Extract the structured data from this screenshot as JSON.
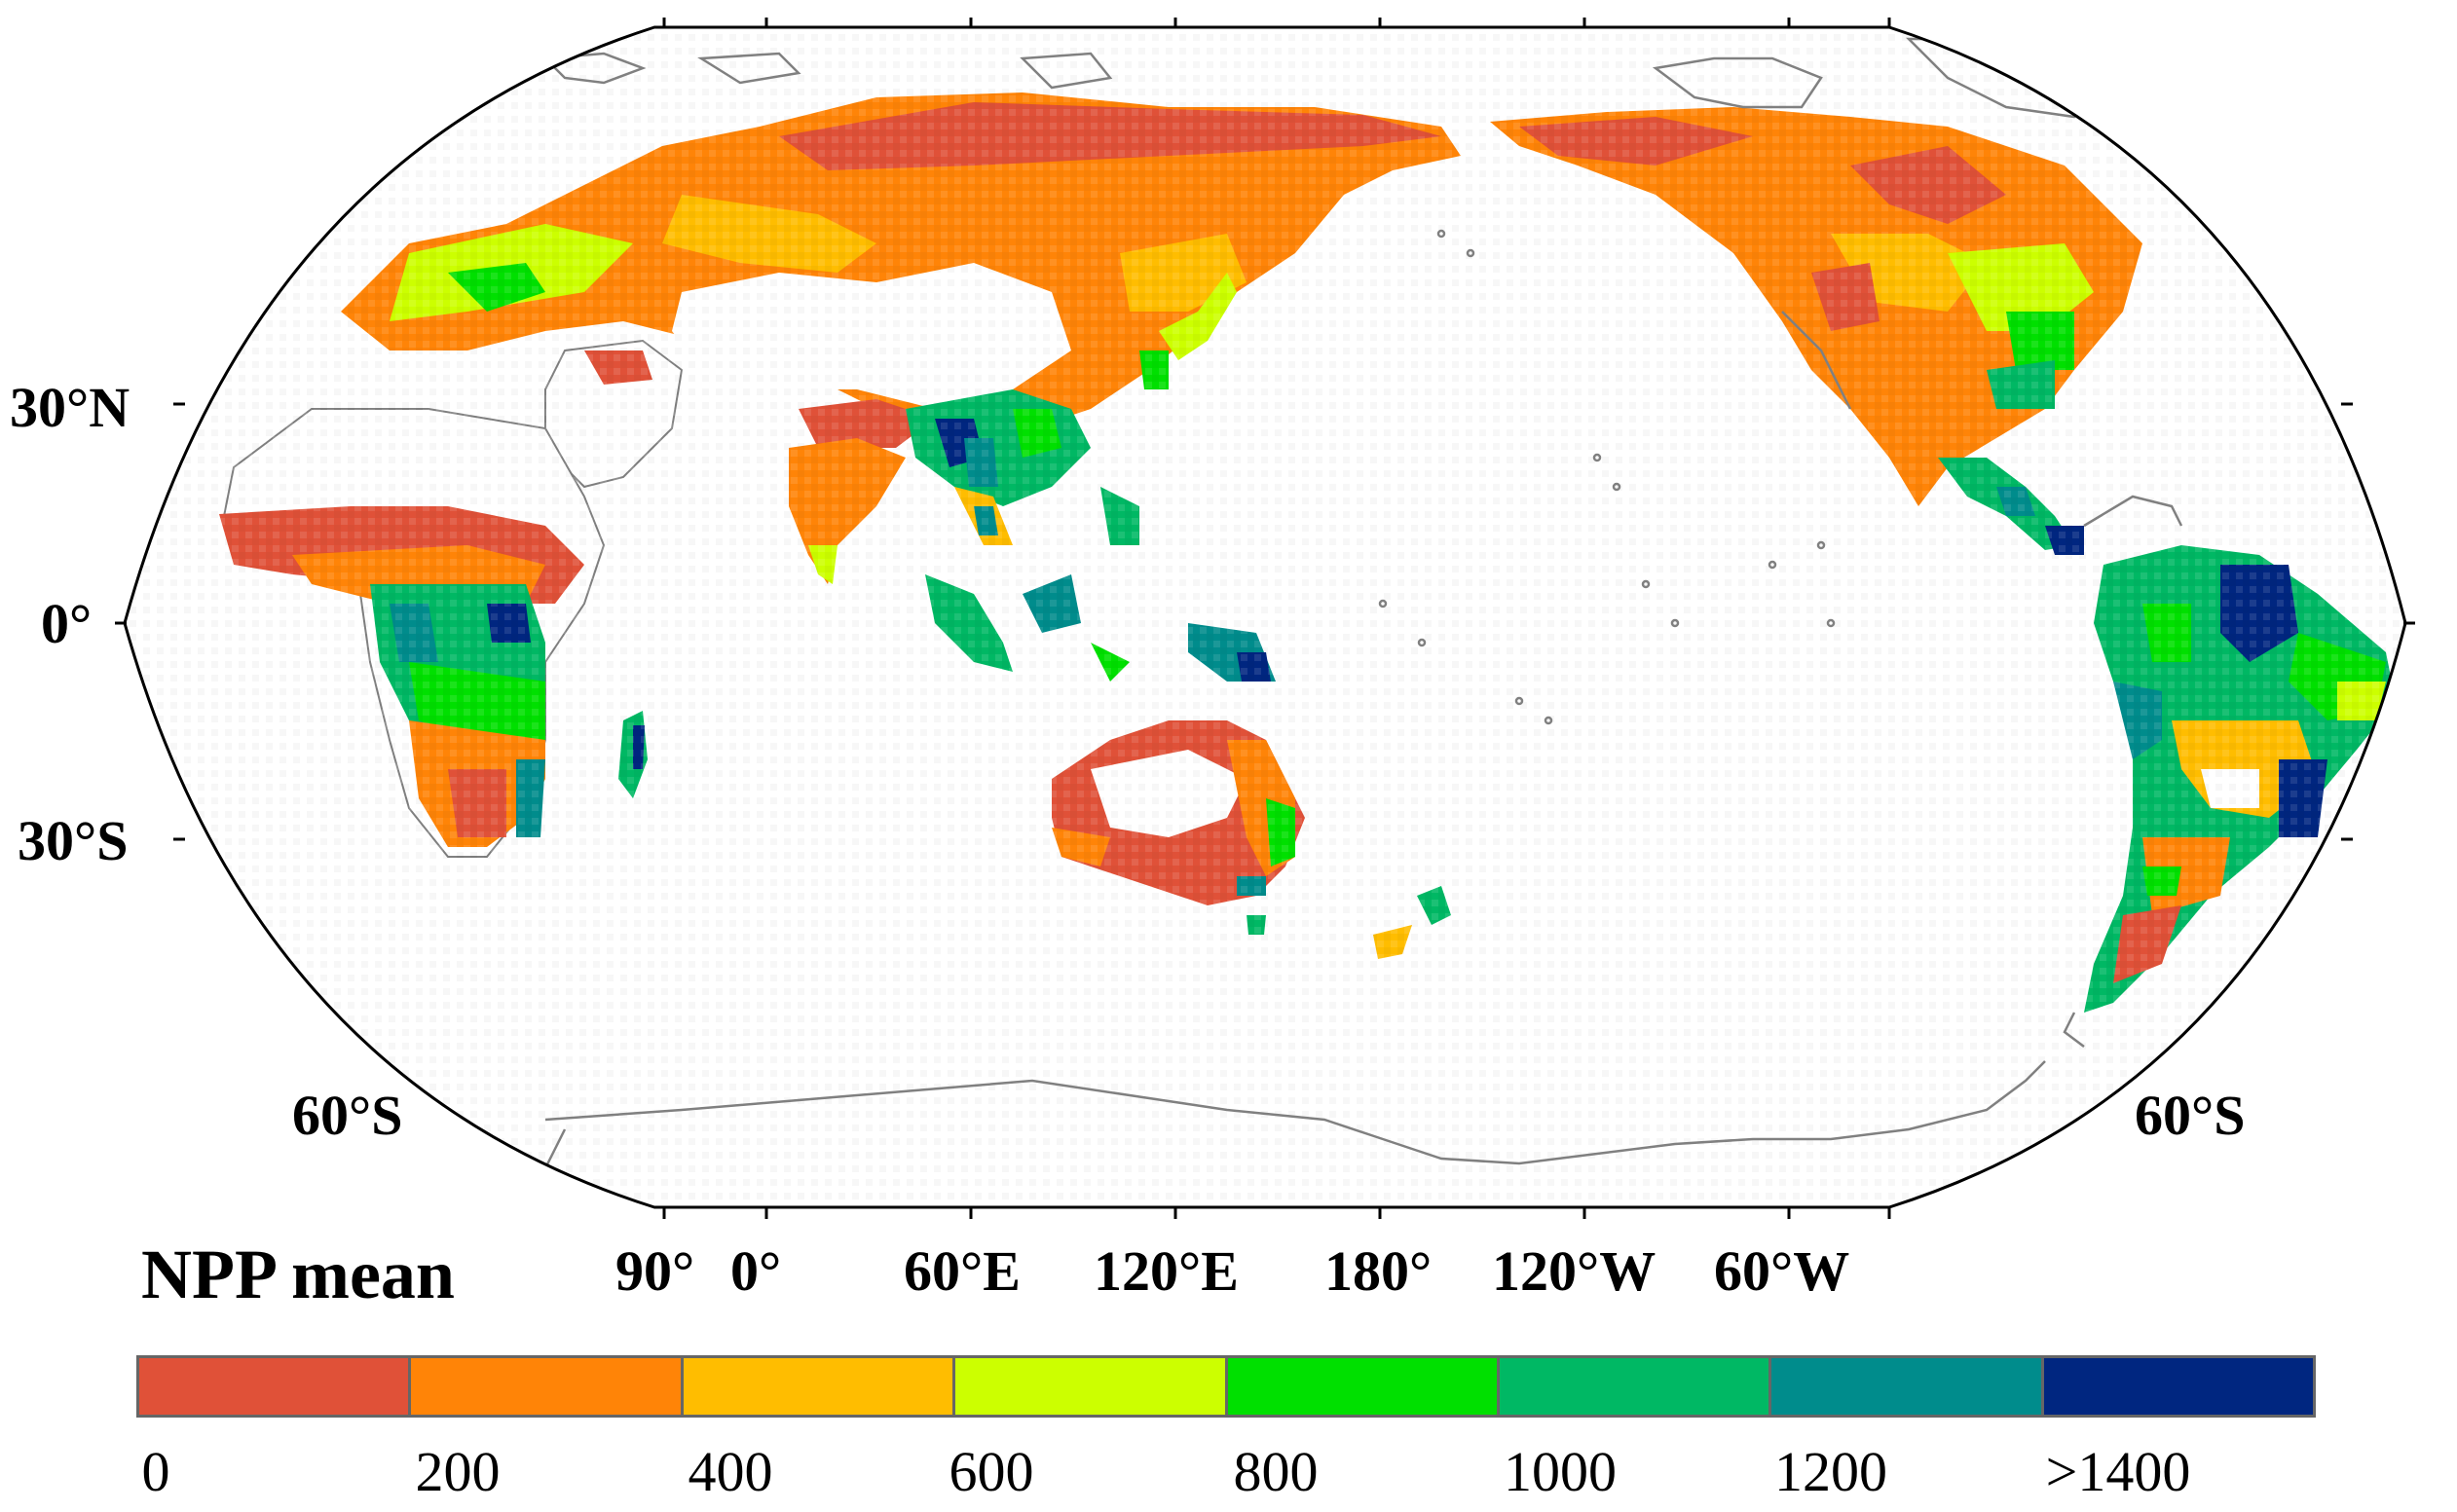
{
  "map": {
    "projection": "Robinson (Pacific-centered)",
    "colors": {
      "frame": "#000000",
      "coastline": "#808080",
      "ocean": "#ffffff",
      "desert_gap": "#ffffff"
    },
    "lat_labels": {
      "left_30n": "30°N",
      "left_0": "0°",
      "left_30s": "30°S",
      "left_60s": "60°S",
      "right_60s": "60°S"
    },
    "lon_labels": [
      "90°",
      "0°",
      "60°E",
      "120°E",
      "180°",
      "120°W",
      "60°W"
    ]
  },
  "legend": {
    "title": "NPP mean",
    "classes": [
      {
        "label": "0",
        "color": "#e05138"
      },
      {
        "label": "200",
        "color": "#ff8407"
      },
      {
        "label": "400",
        "color": "#ffbd00"
      },
      {
        "label": "600",
        "color": "#ccff00"
      },
      {
        "label": "800",
        "color": "#00e000"
      },
      {
        "label": "1000",
        "color": "#00b864"
      },
      {
        "label": "1200",
        "color": "#008c8c"
      },
      {
        "label": ">1400",
        "color": "#002680"
      }
    ]
  }
}
